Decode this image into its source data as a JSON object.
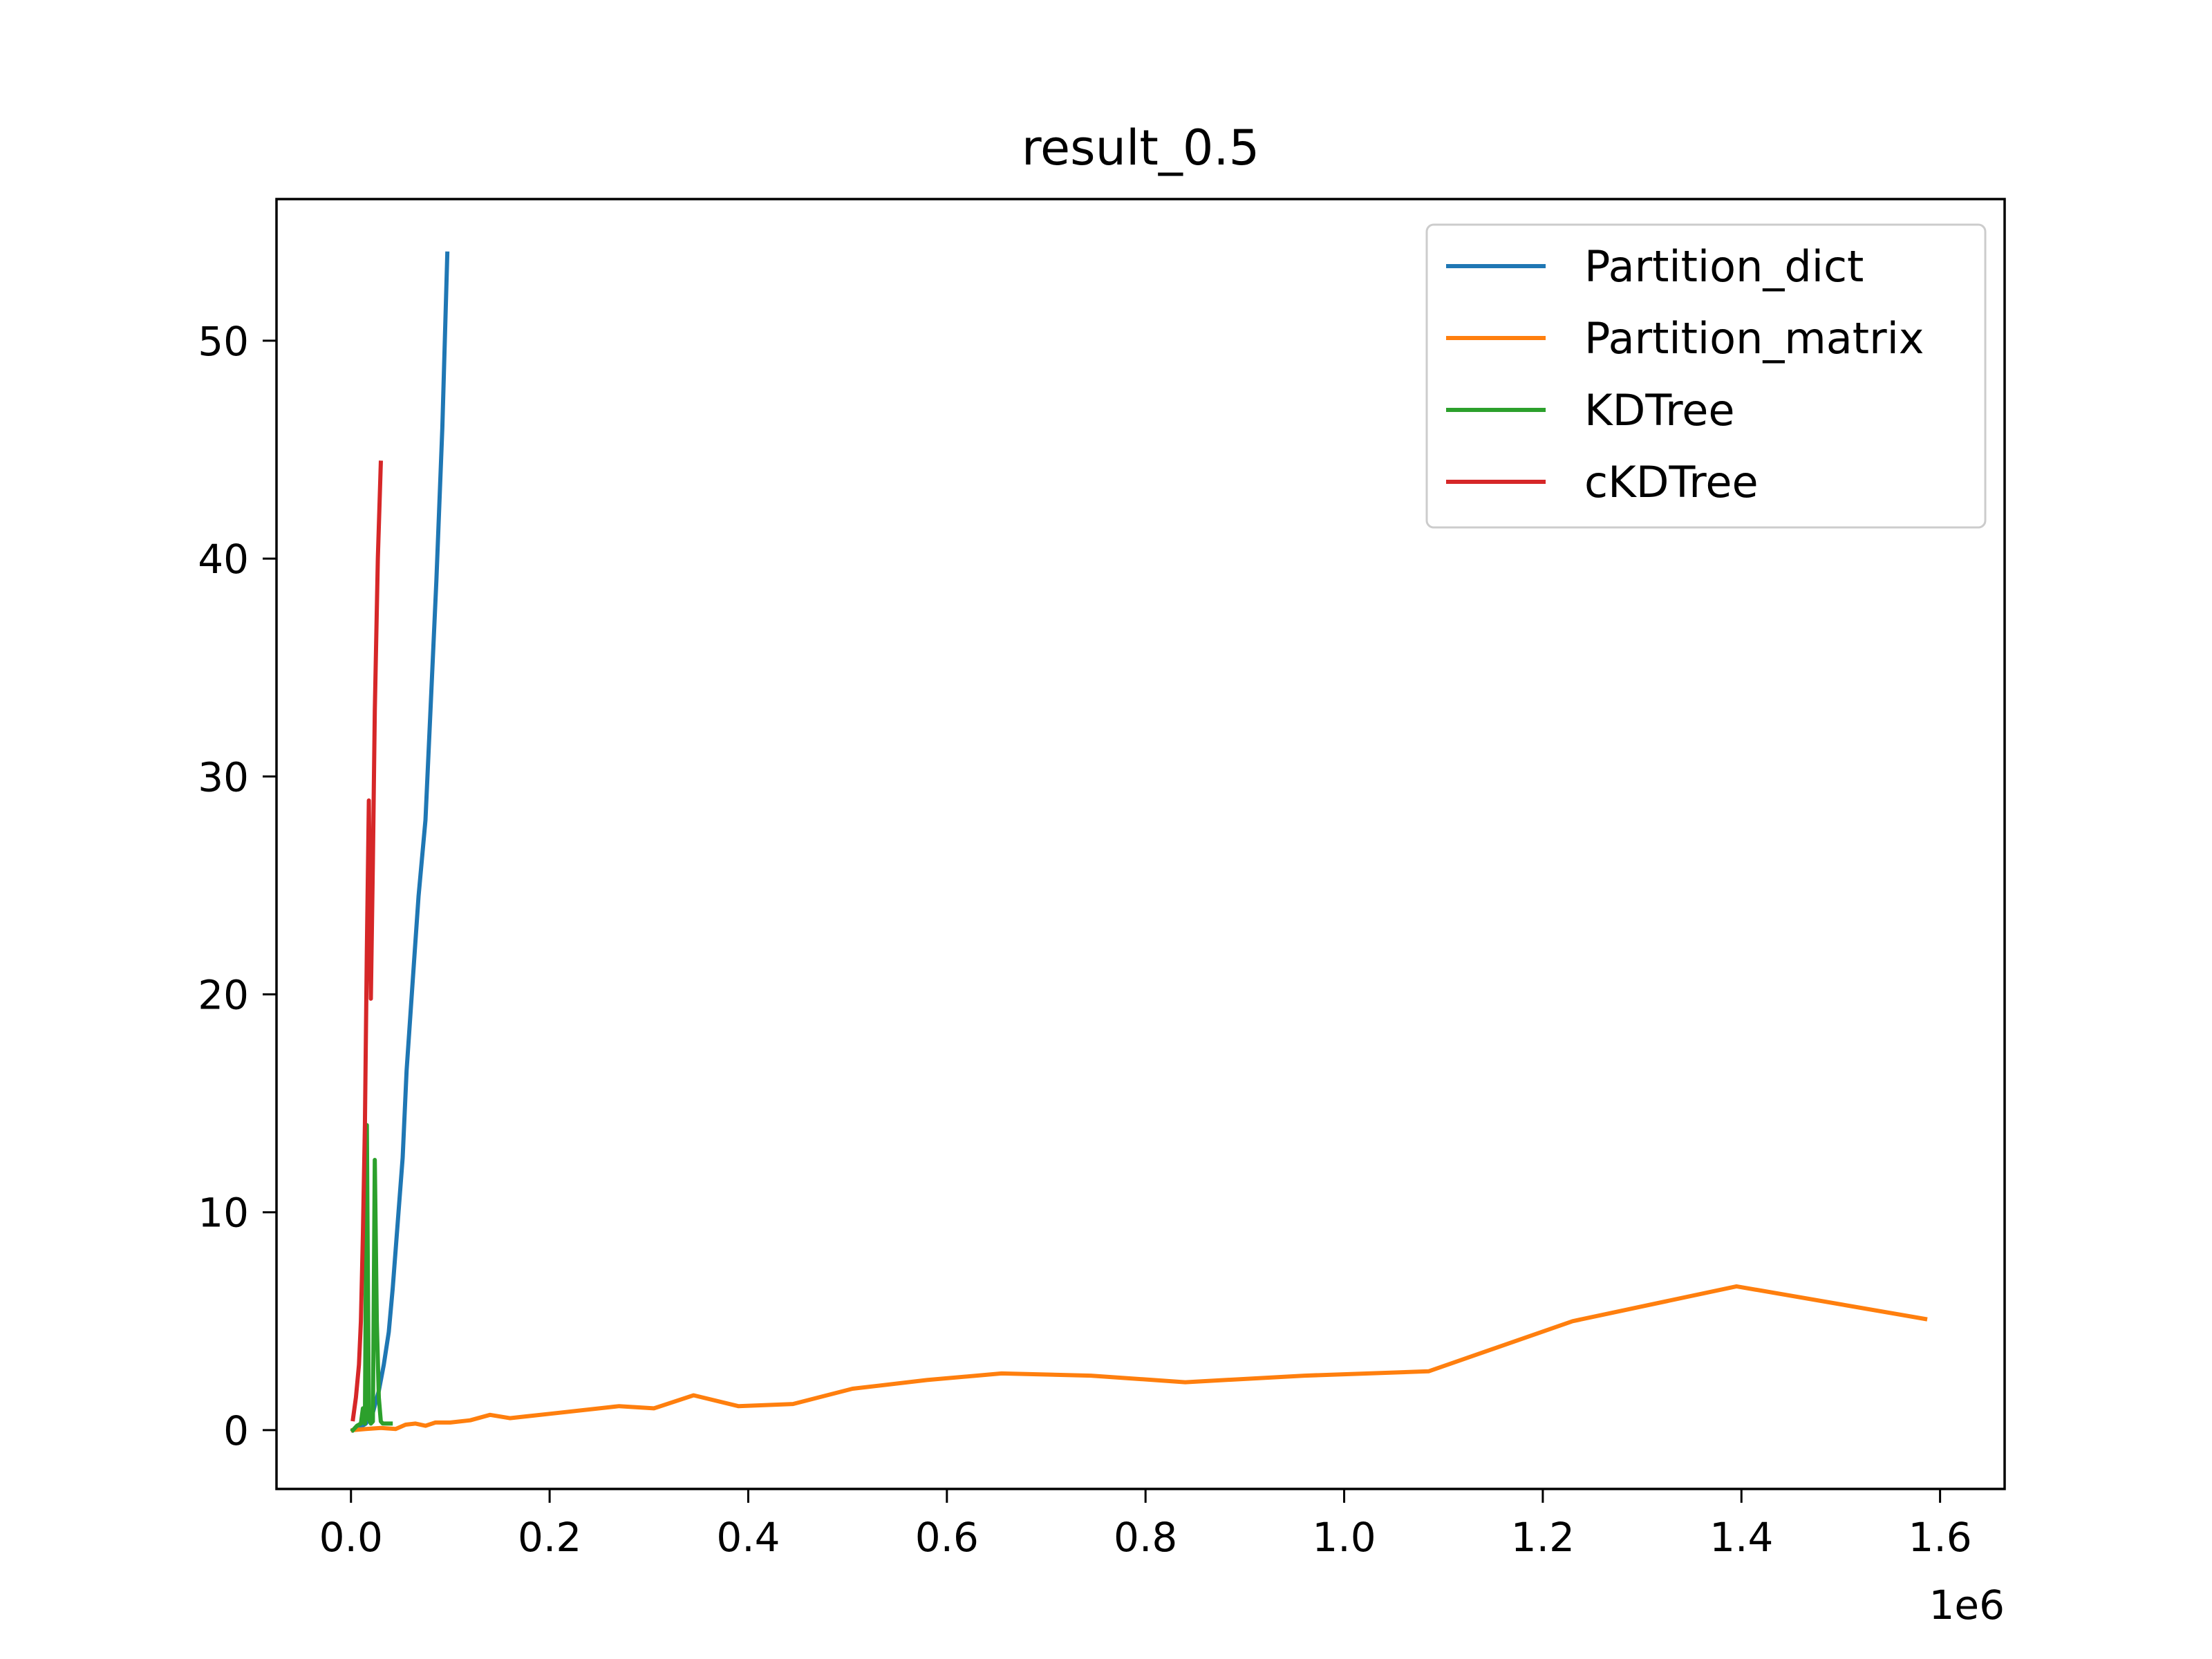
{
  "chart_data": {
    "type": "line",
    "title": "result_0.5",
    "xlabel": "",
    "ylabel": "",
    "x_offset_text": "1e6",
    "x_scale": 1000000,
    "xlim": [
      -75000,
      1665000
    ],
    "ylim": [
      -2.7,
      56.5
    ],
    "x_ticks": [
      0.0,
      0.2,
      0.4,
      0.6,
      0.8,
      1.0,
      1.2,
      1.4,
      1.6
    ],
    "x_tick_labels": [
      "0.0",
      "0.2",
      "0.4",
      "0.6",
      "0.8",
      "1.0",
      "1.2",
      "1.4",
      "1.6"
    ],
    "y_ticks": [
      0,
      10,
      20,
      30,
      40,
      50
    ],
    "y_tick_labels": [
      "0",
      "10",
      "20",
      "30",
      "40",
      "50"
    ],
    "grid": false,
    "legend_position": "top-right",
    "series": [
      {
        "name": "Partition_dict",
        "color": "#1f77b4",
        "points": [
          [
            2000,
            0.0
          ],
          [
            8000,
            0.1
          ],
          [
            15000,
            0.3
          ],
          [
            22000,
            0.8
          ],
          [
            28000,
            1.8
          ],
          [
            33000,
            3.0
          ],
          [
            38000,
            4.5
          ],
          [
            42000,
            6.5
          ],
          [
            47000,
            9.5
          ],
          [
            52000,
            12.5
          ],
          [
            56000,
            16.5
          ],
          [
            62000,
            20.5
          ],
          [
            68000,
            24.5
          ],
          [
            75000,
            28.0
          ],
          [
            80000,
            33.0
          ],
          [
            86000,
            39.0
          ],
          [
            92000,
            46.0
          ],
          [
            97000,
            54.0
          ]
        ]
      },
      {
        "name": "Partition_matrix",
        "color": "#ff7f0e",
        "points": [
          [
            2000,
            0.0
          ],
          [
            15000,
            0.05
          ],
          [
            30000,
            0.1
          ],
          [
            45000,
            0.05
          ],
          [
            55000,
            0.25
          ],
          [
            65000,
            0.3
          ],
          [
            75000,
            0.2
          ],
          [
            85000,
            0.35
          ],
          [
            100000,
            0.35
          ],
          [
            120000,
            0.45
          ],
          [
            140000,
            0.7
          ],
          [
            160000,
            0.55
          ],
          [
            200000,
            0.75
          ],
          [
            270000,
            1.1
          ],
          [
            305000,
            1.0
          ],
          [
            345000,
            1.6
          ],
          [
            390000,
            1.1
          ],
          [
            445000,
            1.2
          ],
          [
            505000,
            1.9
          ],
          [
            580000,
            2.3
          ],
          [
            655000,
            2.6
          ],
          [
            745000,
            2.5
          ],
          [
            840000,
            2.2
          ],
          [
            960000,
            2.5
          ],
          [
            1085000,
            2.7
          ],
          [
            1230000,
            5.0
          ],
          [
            1395000,
            6.6
          ],
          [
            1585000,
            5.1
          ]
        ]
      },
      {
        "name": "KDTree",
        "color": "#2ca02c",
        "points": [
          [
            2000,
            0.0
          ],
          [
            6000,
            0.2
          ],
          [
            10000,
            0.3
          ],
          [
            12000,
            1.0
          ],
          [
            14000,
            0.3
          ],
          [
            16000,
            14.0
          ],
          [
            18000,
            0.5
          ],
          [
            20000,
            0.3
          ],
          [
            22000,
            0.4
          ],
          [
            24000,
            12.4
          ],
          [
            26000,
            5.0
          ],
          [
            28000,
            1.5
          ],
          [
            30000,
            0.4
          ],
          [
            32000,
            0.3
          ],
          [
            36000,
            0.3
          ],
          [
            40000,
            0.3
          ]
        ]
      },
      {
        "name": "cKDTree",
        "color": "#d62728",
        "points": [
          [
            2000,
            0.5
          ],
          [
            5000,
            1.5
          ],
          [
            8000,
            3.0
          ],
          [
            10000,
            5.0
          ],
          [
            12000,
            9.0
          ],
          [
            14000,
            14.0
          ],
          [
            16000,
            22.0
          ],
          [
            18000,
            28.9
          ],
          [
            20000,
            19.8
          ],
          [
            22000,
            26.0
          ],
          [
            24000,
            33.0
          ],
          [
            27000,
            40.0
          ],
          [
            30000,
            44.4
          ]
        ]
      }
    ]
  }
}
